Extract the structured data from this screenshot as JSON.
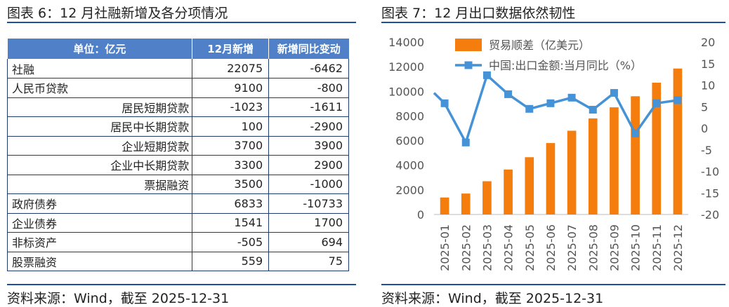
{
  "left": {
    "title": "图表 6：12 月社融新增及各分项情况",
    "source": "资料来源：Wind，截至 2025-12-31",
    "table": {
      "headers": [
        "单位：亿元",
        "12月新增",
        "新增同比变动"
      ],
      "rows": [
        {
          "label": "社融",
          "v1": "22075",
          "v2": "-6462",
          "indent": false
        },
        {
          "label": "人民币贷款",
          "v1": "9100",
          "v2": "-800",
          "indent": false
        },
        {
          "label": "居民短期贷款",
          "v1": "-1023",
          "v2": "-1611",
          "indent": true
        },
        {
          "label": "居民中长期贷款",
          "v1": "100",
          "v2": "-2900",
          "indent": true
        },
        {
          "label": "企业短期贷款",
          "v1": "3700",
          "v2": "3900",
          "indent": true
        },
        {
          "label": "企业中长期贷款",
          "v1": "3300",
          "v2": "2900",
          "indent": true
        },
        {
          "label": "票据融资",
          "v1": "3500",
          "v2": "-1000",
          "indent": true
        },
        {
          "label": "政府债券",
          "v1": "6833",
          "v2": "-10733",
          "indent": false
        },
        {
          "label": "企业债券",
          "v1": "1541",
          "v2": "1700",
          "indent": false
        },
        {
          "label": "非标资产",
          "v1": "-505",
          "v2": "694",
          "indent": false
        },
        {
          "label": "股票融资",
          "v1": "559",
          "v2": "75",
          "indent": false
        }
      ]
    }
  },
  "right": {
    "title": "图表 7：12 月出口数据依然韧性",
    "source": "资料来源：Wind，截至 2025-12-31"
  },
  "chart_data": {
    "type": "bar",
    "categories": [
      "2025-01",
      "2025-02",
      "2025-03",
      "2025-04",
      "2025-05",
      "2025-06",
      "2025-07",
      "2025-08",
      "2025-09",
      "2025-10",
      "2025-11",
      "2025-12"
    ],
    "series": [
      {
        "name": "贸易顺差（亿美元）",
        "type": "bar",
        "axis": "left",
        "color": "#f47d0e",
        "values": [
          1380,
          1700,
          2700,
          3650,
          4650,
          5800,
          6800,
          7800,
          8700,
          9600,
          10700,
          11850
        ]
      },
      {
        "name": "中国:出口金额:当月同比（%）",
        "type": "line",
        "axis": "right",
        "color": "#4592d6",
        "values": [
          5.8,
          -3.3,
          12.3,
          7.9,
          4.5,
          5.8,
          7.1,
          4.3,
          8.2,
          -1.2,
          5.8,
          6.5
        ]
      }
    ],
    "line_start_value": 8.2,
    "ylim": [
      0,
      14000
    ],
    "yticks": [
      "0",
      "2000",
      "4000",
      "6000",
      "8000",
      "10000",
      "12000",
      "14000"
    ],
    "ylim_right": [
      -20,
      20
    ],
    "yticks_right": [
      "-20",
      "-15",
      "-10",
      "-5",
      "0",
      "5",
      "10",
      "15",
      "20"
    ],
    "legend_position": "top-left",
    "grid": false
  }
}
